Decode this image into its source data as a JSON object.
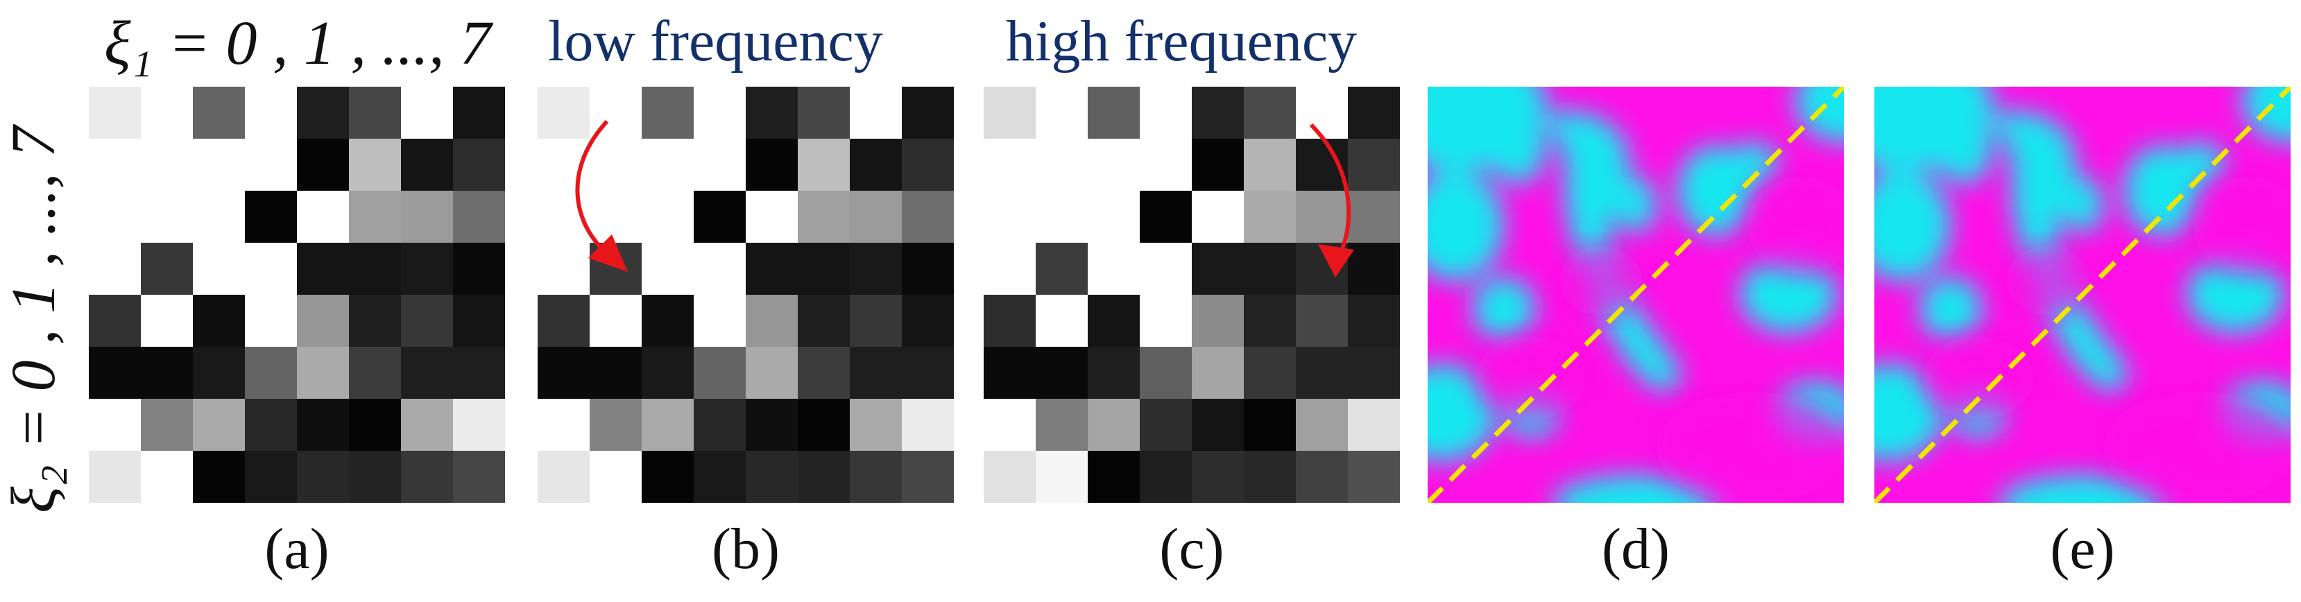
{
  "axis_top_label": "ξ₁ = 0 , 1 , ..., 7",
  "axis_left_label": "ξ₂ = 0 , 1 , ..., 7",
  "annotations": {
    "low": "low frequency",
    "high": "high frequency"
  },
  "captions": [
    "(a)",
    "(b)",
    "(c)",
    "(d)",
    "(e)"
  ],
  "colors": {
    "diagonal": "#f0e600",
    "arrow": "#e8151b",
    "annotation_text": "#13306b",
    "field_low": "#14e6f0",
    "field_high": "#ff10e6"
  },
  "grids": {
    "a": [
      [
        235,
        255,
        100,
        255,
        30,
        70,
        255,
        20
      ],
      [
        255,
        255,
        255,
        255,
        5,
        190,
        20,
        45
      ],
      [
        255,
        255,
        255,
        5,
        255,
        160,
        155,
        110
      ],
      [
        255,
        55,
        255,
        255,
        20,
        20,
        25,
        10
      ],
      [
        50,
        255,
        15,
        255,
        150,
        30,
        55,
        20
      ],
      [
        10,
        10,
        25,
        100,
        170,
        60,
        30,
        30
      ],
      [
        255,
        130,
        170,
        40,
        15,
        5,
        170,
        235
      ],
      [
        230,
        255,
        5,
        25,
        40,
        35,
        55,
        70
      ]
    ],
    "b": [
      [
        235,
        255,
        100,
        255,
        30,
        70,
        255,
        20
      ],
      [
        255,
        255,
        255,
        255,
        5,
        190,
        20,
        45
      ],
      [
        255,
        255,
        255,
        5,
        255,
        160,
        155,
        110
      ],
      [
        255,
        55,
        255,
        255,
        20,
        20,
        25,
        10
      ],
      [
        50,
        255,
        15,
        255,
        150,
        30,
        55,
        20
      ],
      [
        10,
        10,
        25,
        100,
        170,
        60,
        30,
        30
      ],
      [
        255,
        130,
        170,
        40,
        15,
        5,
        170,
        235
      ],
      [
        230,
        255,
        5,
        25,
        40,
        35,
        55,
        70
      ]
    ],
    "c": [
      [
        220,
        255,
        95,
        255,
        35,
        75,
        255,
        25
      ],
      [
        255,
        255,
        255,
        255,
        5,
        180,
        25,
        55
      ],
      [
        255,
        255,
        255,
        5,
        255,
        170,
        150,
        120
      ],
      [
        255,
        60,
        255,
        255,
        25,
        25,
        40,
        15
      ],
      [
        45,
        255,
        20,
        255,
        140,
        35,
        70,
        30
      ],
      [
        10,
        10,
        30,
        95,
        165,
        55,
        35,
        35
      ],
      [
        255,
        125,
        165,
        45,
        20,
        5,
        160,
        225
      ],
      [
        225,
        245,
        5,
        30,
        45,
        40,
        65,
        80
      ]
    ]
  }
}
